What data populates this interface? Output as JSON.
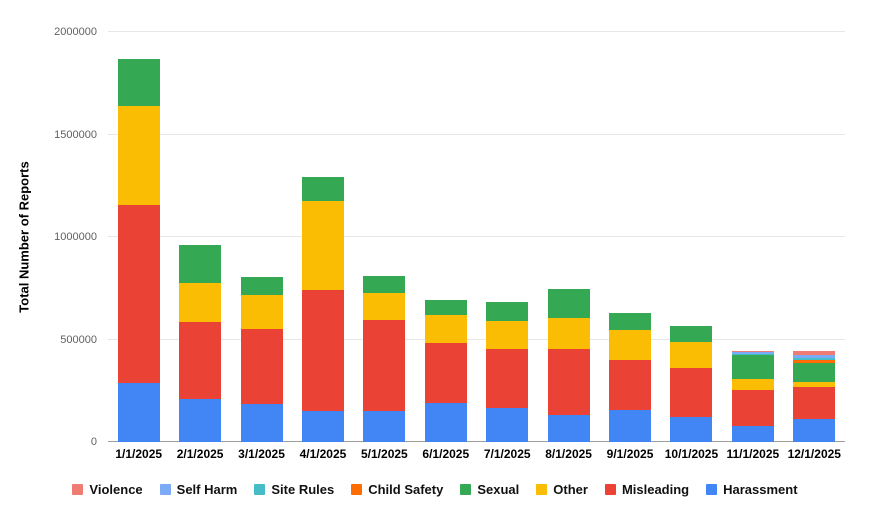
{
  "chart_data": {
    "type": "bar",
    "stacked": true,
    "title": "",
    "xlabel": "",
    "ylabel": "Total Number of Reports",
    "ylim": [
      0,
      2000000
    ],
    "ytick_interval": 500000,
    "yticks": [
      "0",
      "500000",
      "1000000",
      "1500000",
      "2000000"
    ],
    "grid": true,
    "legend_position": "bottom",
    "categories": [
      "1/1/2025",
      "2/1/2025",
      "3/1/2025",
      "4/1/2025",
      "5/1/2025",
      "6/1/2025",
      "7/1/2025",
      "8/1/2025",
      "9/1/2025",
      "10/1/2025",
      "11/1/2025",
      "12/1/2025"
    ],
    "series": [
      {
        "name": "Harassment",
        "color": "#4285F4",
        "values": [
          290000,
          210000,
          185000,
          150000,
          150000,
          190000,
          165000,
          130000,
          155000,
          120000,
          80000,
          110000
        ]
      },
      {
        "name": "Misleading",
        "color": "#EA4335",
        "values": [
          865000,
          375000,
          365000,
          590000,
          445000,
          295000,
          290000,
          325000,
          245000,
          240000,
          175000,
          160000
        ]
      },
      {
        "name": "Other",
        "color": "#FBBC04",
        "values": [
          485000,
          190000,
          165000,
          435000,
          130000,
          135000,
          135000,
          150000,
          145000,
          130000,
          50000,
          25000
        ]
      },
      {
        "name": "Sexual",
        "color": "#34A853",
        "values": [
          230000,
          185000,
          90000,
          120000,
          85000,
          75000,
          95000,
          140000,
          85000,
          75000,
          120000,
          90000
        ]
      },
      {
        "name": "Child Safety",
        "color": "#FF6D01",
        "values": [
          0,
          0,
          0,
          0,
          0,
          0,
          0,
          0,
          0,
          0,
          0,
          15000
        ]
      },
      {
        "name": "Site Rules",
        "color": "#46BDC6",
        "values": [
          0,
          0,
          0,
          0,
          0,
          0,
          0,
          0,
          0,
          0,
          6000,
          10000
        ]
      },
      {
        "name": "Self Harm",
        "color": "#7BAAF7",
        "values": [
          0,
          0,
          0,
          0,
          0,
          0,
          0,
          0,
          0,
          0,
          6000,
          13000
        ]
      },
      {
        "name": "Violence",
        "color": "#F07B72",
        "values": [
          0,
          0,
          0,
          0,
          0,
          0,
          0,
          0,
          0,
          0,
          8000,
          22000
        ]
      }
    ],
    "legend": [
      {
        "label": "Violence",
        "color": "#F07B72"
      },
      {
        "label": "Self Harm",
        "color": "#7BAAF7"
      },
      {
        "label": "Site Rules",
        "color": "#46BDC6"
      },
      {
        "label": "Child Safety",
        "color": "#FF6D01"
      },
      {
        "label": "Sexual",
        "color": "#34A853"
      },
      {
        "label": "Other",
        "color": "#FBBC04"
      },
      {
        "label": "Misleading",
        "color": "#EA4335"
      },
      {
        "label": "Harassment",
        "color": "#4285F4"
      }
    ]
  }
}
